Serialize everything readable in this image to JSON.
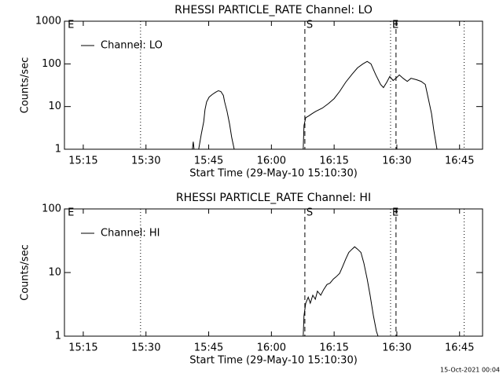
{
  "chart_data": [
    {
      "type": "line",
      "title": "RHESSI PARTICLE_RATE Channel: LO",
      "x_label": "Start Time (29-May-10 15:10:30)",
      "y_label": "Counts/sec",
      "xlim": [
        910.5,
        1010.5
      ],
      "ylim": [
        1,
        1000
      ],
      "ylog": true,
      "xticks": [
        {
          "value": 915,
          "label": "15:15"
        },
        {
          "value": 930,
          "label": "15:30"
        },
        {
          "value": 945,
          "label": "15:45"
        },
        {
          "value": 960,
          "label": "16:00"
        },
        {
          "value": 975,
          "label": "16:15"
        },
        {
          "value": 990,
          "label": "16:30"
        },
        {
          "value": 1005,
          "label": "16:45"
        }
      ],
      "yticks": [
        1,
        10,
        100,
        1000
      ],
      "series": [
        {
          "name": "Channel: LO",
          "color": "#000000",
          "x": [
            941.1,
            941.3,
            941.5,
            null,
            942.6,
            943.2,
            943.8,
            944.1,
            944.5,
            945.1,
            945.8,
            946.6,
            947.3,
            947.9,
            948.5,
            948.8,
            949.4,
            950.0,
            950.5,
            951.1,
            null,
            967.6,
            967.8,
            968.2,
            968.9,
            969.7,
            970.6,
            972.2,
            973.7,
            975.0,
            976.3,
            977.8,
            979.3,
            980.6,
            981.9,
            982.9,
            983.8,
            984.9,
            986.1,
            986.8,
            987.6,
            988.3,
            989.1,
            989.8,
            990.6,
            991.5,
            992.5,
            993.4,
            994.7,
            995.8,
            996.8,
            997.5,
            998.3,
            998.8,
            999.6
          ],
          "values": [
            1,
            1.5,
            1,
            null,
            1,
            2.2,
            4.4,
            8.4,
            12.9,
            16.7,
            19.0,
            21.5,
            23.5,
            22.5,
            18.2,
            12.9,
            7.7,
            3.9,
            1.9,
            1,
            null,
            1,
            3.6,
            5.5,
            6.0,
            6.8,
            7.7,
            9.2,
            11.9,
            15.3,
            22.5,
            37.5,
            57.4,
            80.8,
            100,
            114,
            100,
            57,
            33,
            27.8,
            37.5,
            50.6,
            40.8,
            46.4,
            55,
            46,
            39,
            46,
            42.6,
            39,
            33,
            16,
            6.8,
            2.9,
            1
          ]
        }
      ],
      "markers": [
        {
          "x": 910.9,
          "label": "E"
        },
        {
          "x": 928.7,
          "style": "dotted"
        },
        {
          "x": 968.0,
          "style": "dashed",
          "label": "S"
        },
        {
          "x": 988.5,
          "style": "dotted",
          "label": "E"
        },
        {
          "x": 989.8,
          "style": "dashed"
        },
        {
          "x": 1006.1,
          "style": "dotted"
        }
      ]
    },
    {
      "type": "line",
      "title": "RHESSI PARTICLE_RATE Channel: HI",
      "x_label": "Start Time (29-May-10 15:10:30)",
      "y_label": "Counts/sec",
      "xlim": [
        910.5,
        1010.5
      ],
      "ylim": [
        1,
        100
      ],
      "ylog": true,
      "xticks": [
        {
          "value": 915,
          "label": "15:15"
        },
        {
          "value": 930,
          "label": "15:30"
        },
        {
          "value": 945,
          "label": "15:45"
        },
        {
          "value": 960,
          "label": "16:00"
        },
        {
          "value": 975,
          "label": "16:15"
        },
        {
          "value": 990,
          "label": "16:30"
        },
        {
          "value": 1005,
          "label": "16:45"
        }
      ],
      "yticks": [
        1,
        10,
        100
      ],
      "series": [
        {
          "name": "Channel: HI",
          "color": "#000000",
          "x": [
            967.6,
            967.8,
            968.2,
            968.8,
            969.3,
            969.9,
            970.5,
            971.0,
            971.8,
            972.5,
            973.3,
            974.0,
            974.8,
            975.5,
            976.3,
            977.0,
            977.8,
            978.5,
            979.3,
            979.9,
            980.6,
            981.4,
            982.1,
            982.9,
            983.6,
            984.4,
            985.1,
            985.5
          ],
          "values": [
            1,
            2.1,
            3.3,
            4.1,
            3.3,
            4.4,
            3.8,
            5.1,
            4.4,
            5.4,
            6.5,
            6.8,
            7.9,
            8.6,
            9.7,
            12.3,
            16.4,
            20.7,
            23.3,
            25.4,
            23.3,
            20.7,
            14.2,
            7.9,
            4.4,
            2.1,
            1.2,
            1
          ]
        }
      ],
      "markers": [
        {
          "x": 910.9,
          "label": "E"
        },
        {
          "x": 928.7,
          "style": "dotted"
        },
        {
          "x": 968.0,
          "style": "dashed",
          "label": "S"
        },
        {
          "x": 988.5,
          "style": "dotted",
          "label": "E"
        },
        {
          "x": 989.8,
          "style": "dashed"
        },
        {
          "x": 1006.1,
          "style": "dotted"
        }
      ]
    }
  ],
  "footer": "15-Oct-2021 00:04"
}
